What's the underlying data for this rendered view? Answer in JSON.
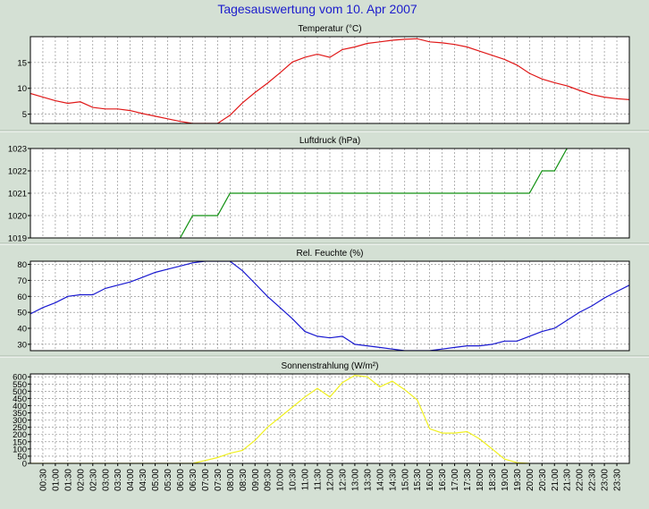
{
  "title": "Tagesauswertung vom 10. Apr 2007",
  "colors": {
    "background": "#d4e0d4",
    "plot_background": "#ffffff",
    "grid": "#808080",
    "title_text": "#1c1ccc",
    "temperature": "#e01818",
    "pressure": "#109010",
    "humidity": "#1818d0",
    "radiation": "#f0f020"
  },
  "chart_data": [
    {
      "type": "line",
      "title": "Temperatur (°C)",
      "color_key": "temperature",
      "ylim": [
        3.2,
        20
      ],
      "yticks": [
        5,
        10,
        15
      ],
      "grid": true,
      "x": [
        "00:00",
        "00:30",
        "01:00",
        "01:30",
        "02:00",
        "02:30",
        "03:00",
        "03:30",
        "04:00",
        "04:30",
        "05:00",
        "05:30",
        "06:00",
        "06:30",
        "07:00",
        "07:30",
        "08:00",
        "08:30",
        "09:00",
        "09:30",
        "10:00",
        "10:30",
        "11:00",
        "11:30",
        "12:00",
        "12:30",
        "13:00",
        "13:30",
        "14:00",
        "14:30",
        "15:00",
        "15:30",
        "16:00",
        "16:30",
        "17:00",
        "17:30",
        "18:00",
        "18:30",
        "19:00",
        "19:30",
        "20:00",
        "20:30",
        "21:00",
        "21:30",
        "22:00",
        "22:30",
        "23:00",
        "23:30",
        "24:00"
      ],
      "values": [
        9.0,
        8.3,
        7.6,
        7.1,
        7.4,
        6.3,
        6.0,
        6.0,
        5.7,
        5.1,
        4.6,
        4.1,
        3.6,
        3.2,
        3.2,
        3.2,
        4.8,
        7.2,
        9.2,
        11.0,
        13.0,
        15.1,
        16.0,
        16.6,
        16.0,
        17.5,
        18.0,
        18.7,
        19.0,
        19.3,
        19.5,
        19.6,
        19.0,
        18.8,
        18.5,
        18.0,
        17.2,
        16.4,
        15.6,
        14.5,
        12.9,
        11.8,
        11.1,
        10.5,
        9.6,
        8.8,
        8.3,
        8.0,
        7.8
      ]
    },
    {
      "type": "line",
      "title": "Luftdruck (hPa)",
      "color_key": "pressure",
      "ylim": [
        1019,
        1023
      ],
      "yticks": [
        1019,
        1020,
        1021,
        1022,
        1023
      ],
      "grid": true,
      "x": [
        "06:00",
        "06:30",
        "07:00",
        "07:30",
        "08:00",
        "20:00",
        "20:30",
        "21:00",
        "21:30"
      ],
      "values": [
        1019,
        1020,
        1020,
        1020,
        1021,
        1021,
        1022,
        1022,
        1023
      ]
    },
    {
      "type": "line",
      "title": "Rel. Feuchte (%)",
      "color_key": "humidity",
      "ylim": [
        26,
        82
      ],
      "yticks": [
        30,
        40,
        50,
        60,
        70,
        80
      ],
      "grid": true,
      "x": [
        "00:00",
        "00:30",
        "01:00",
        "01:30",
        "02:00",
        "02:30",
        "03:00",
        "03:30",
        "04:00",
        "04:30",
        "05:00",
        "05:30",
        "06:00",
        "06:30",
        "07:00",
        "07:30",
        "08:00",
        "08:30",
        "09:00",
        "09:30",
        "10:00",
        "10:30",
        "11:00",
        "11:30",
        "12:00",
        "12:30",
        "13:00",
        "13:30",
        "14:00",
        "14:30",
        "15:00",
        "15:30",
        "16:00",
        "16:30",
        "17:00",
        "17:30",
        "18:00",
        "18:30",
        "19:00",
        "19:30",
        "20:00",
        "20:30",
        "21:00",
        "21:30",
        "22:00",
        "22:30",
        "23:00",
        "23:30",
        "24:00"
      ],
      "values": [
        49,
        53,
        56,
        60,
        61,
        61,
        65,
        67,
        69,
        72,
        75,
        77,
        79,
        81,
        82,
        82,
        82,
        76,
        68,
        60,
        53,
        46,
        38,
        35,
        34,
        35,
        30,
        29,
        28,
        27,
        26,
        26,
        26,
        27,
        28,
        29,
        29,
        30,
        32,
        32,
        35,
        38,
        40,
        45,
        50,
        54,
        59,
        63,
        67
      ]
    },
    {
      "type": "line",
      "title": "Sonnenstrahlung (W/m²)",
      "color_key": "radiation",
      "ylim": [
        0,
        620
      ],
      "yticks": [
        0,
        50,
        100,
        150,
        200,
        250,
        300,
        350,
        400,
        450,
        500,
        550,
        600
      ],
      "grid": true,
      "x": [
        "00:00",
        "00:30",
        "01:00",
        "01:30",
        "02:00",
        "02:30",
        "03:00",
        "03:30",
        "04:00",
        "04:30",
        "05:00",
        "05:30",
        "06:00",
        "06:30",
        "07:00",
        "07:30",
        "08:00",
        "08:30",
        "09:00",
        "09:30",
        "10:00",
        "10:30",
        "11:00",
        "11:30",
        "12:00",
        "12:30",
        "13:00",
        "13:30",
        "14:00",
        "14:30",
        "15:00",
        "15:30",
        "16:00",
        "16:30",
        "17:00",
        "17:30",
        "18:00",
        "18:30",
        "19:00",
        "19:30",
        "20:00"
      ],
      "values": [
        0,
        0,
        0,
        0,
        0,
        0,
        0,
        0,
        0,
        0,
        0,
        0,
        0,
        0,
        20,
        40,
        70,
        90,
        160,
        250,
        320,
        390,
        460,
        520,
        460,
        560,
        610,
        600,
        530,
        570,
        510,
        440,
        240,
        210,
        210,
        220,
        170,
        100,
        30,
        5,
        0
      ]
    }
  ],
  "x_tick_labels": [
    "00:30",
    "01:00",
    "01:30",
    "02:00",
    "02:30",
    "03:00",
    "03:30",
    "04:00",
    "04:30",
    "05:00",
    "05:30",
    "06:00",
    "06:30",
    "07:00",
    "07:30",
    "08:00",
    "08:30",
    "09:00",
    "09:30",
    "10:00",
    "10:30",
    "11:00",
    "11:30",
    "12:00",
    "12:30",
    "13:00",
    "13:30",
    "14:00",
    "14:30",
    "15:00",
    "15:30",
    "16:00",
    "16:30",
    "17:00",
    "17:30",
    "18:00",
    "18:30",
    "19:00",
    "19:30",
    "20:00",
    "20:30",
    "21:00",
    "21:30",
    "22:00",
    "22:30",
    "23:00",
    "23:30"
  ]
}
